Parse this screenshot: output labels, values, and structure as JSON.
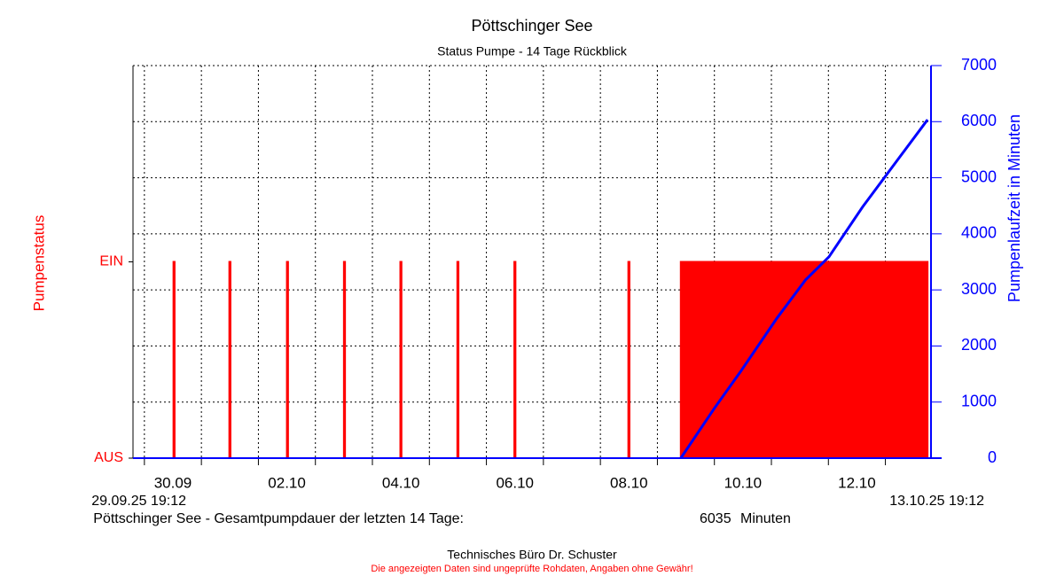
{
  "chart_data": {
    "type": "pump",
    "title": "Pöttschinger See",
    "subtitle": "Status Pumpe - 14 Tage Rückblick",
    "ylabel": "Pumpenstatus",
    "y2label": "Pumpenlaufzeit in Minuten",
    "xlim": [
      0,
      14
    ],
    "xticks": [
      {
        "value": 0.7,
        "label": "30.09"
      },
      {
        "value": 2.7,
        "label": "02.10"
      },
      {
        "value": 4.7,
        "label": "04.10"
      },
      {
        "value": 6.7,
        "label": "06.10"
      },
      {
        "value": 8.7,
        "label": "08.10"
      },
      {
        "value": 10.7,
        "label": "10.10"
      },
      {
        "value": 12.7,
        "label": "12.10"
      }
    ],
    "xgrid": [
      0.2,
      1.2,
      2.2,
      3.2,
      4.2,
      5.2,
      6.2,
      7.2,
      8.2,
      9.2,
      10.2,
      11.2,
      12.2,
      13.2
    ],
    "xstart": {
      "value": 0,
      "label": "29.09.25 19:12"
    },
    "xend": {
      "value": 14,
      "label": "13.10.25 19:12"
    },
    "ylim": [
      0,
      2
    ],
    "yticks": [
      {
        "value": 0,
        "label": "AUS"
      },
      {
        "value": 1,
        "label": "EIN"
      }
    ],
    "y2lim": [
      0,
      7000
    ],
    "y2ticks": [
      0,
      1000,
      2000,
      3000,
      4000,
      5000,
      6000,
      7000
    ],
    "grid": true,
    "series": [
      {
        "name": "Pumpenstatus",
        "color": "#ff0000",
        "axis": "y",
        "x": [
          0,
          0.71,
          0.71,
          0.73,
          0.73,
          1.69,
          1.69,
          1.71,
          1.71,
          2.7,
          2.7,
          2.72,
          2.72,
          3.7,
          3.7,
          3.72,
          3.72,
          4.69,
          4.69,
          4.71,
          4.71,
          5.69,
          5.69,
          5.71,
          5.71,
          6.69,
          6.69,
          6.71,
          6.71,
          8.69,
          8.69,
          8.71,
          8.71,
          9.61,
          9.61,
          13.94,
          13.94
        ],
        "values": [
          0,
          0,
          1,
          1,
          0,
          0,
          1,
          1,
          0,
          0,
          1,
          1,
          0,
          0,
          1,
          1,
          0,
          0,
          1,
          1,
          0,
          0,
          1,
          1,
          0,
          0,
          1,
          1,
          0,
          0,
          1,
          1,
          0,
          0,
          1,
          1,
          0
        ]
      },
      {
        "name": "Pumpenlaufzeit",
        "color": "#0000ff",
        "axis": "y2",
        "x": [
          9.61,
          10.2,
          10.65,
          11.3,
          11.8,
          12.21,
          12.8,
          13.4,
          13.94
        ],
        "values": [
          0,
          890,
          1530,
          2500,
          3180,
          3590,
          4480,
          5300,
          6035
        ]
      }
    ],
    "summary_label": "Pöttschinger See - Gesamtpumpdauer der letzten 14 Tage:",
    "summary_value": 6035,
    "summary_unit": "Minuten",
    "footer": "Technisches Büro Dr. Schuster",
    "disclaimer": "Die angezeigten Daten sind ungeprüfte Rohdaten, Angaben ohne Gewähr!"
  }
}
